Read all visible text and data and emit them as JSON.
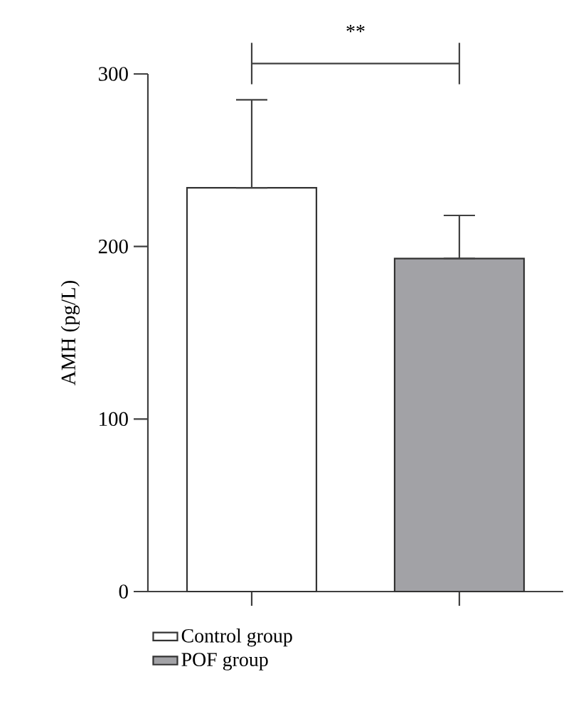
{
  "chart_data": {
    "type": "bar",
    "ylabel": "AMH (pg/L)",
    "categories": [
      null,
      null
    ],
    "series": [
      {
        "name": "Control group",
        "color": "#ffffff",
        "values": [
          234,
          null
        ],
        "errors": [
          [
            234,
            285
          ],
          null
        ]
      },
      {
        "name": "POF group",
        "color": "#a2a2a6",
        "values": [
          null,
          193
        ],
        "errors": [
          null,
          [
            193,
            218
          ]
        ]
      }
    ],
    "ylim": [
      0,
      300
    ],
    "yticks": [
      0,
      100,
      200,
      300
    ],
    "grid": false,
    "legend": "bottom",
    "annotations": [
      "**"
    ]
  }
}
